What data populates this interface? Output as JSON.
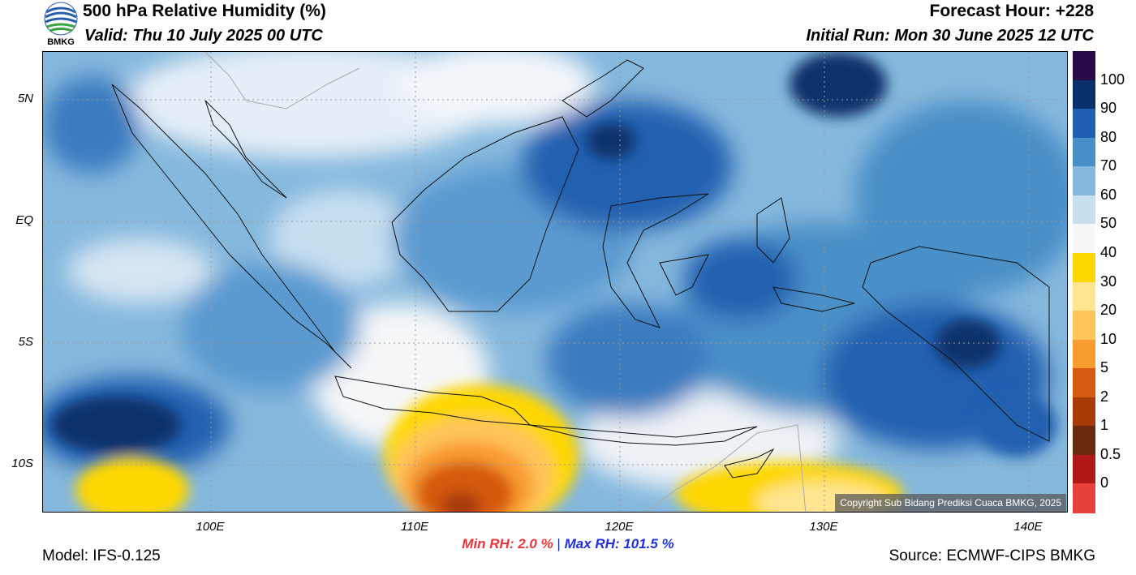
{
  "header": {
    "title": "500 hPa Relative Humidity (%)",
    "valid": "Valid: Thu 10 July 2025 00 UTC",
    "forecast_hour": "Forecast Hour: +228",
    "initial_run": "Initial Run: Mon 30 June 2025 12 UTC",
    "logo_text": "BMKG"
  },
  "map": {
    "lat_labels": [
      "5N",
      "EQ",
      "5S",
      "10S"
    ],
    "lon_labels": [
      "100E",
      "110E",
      "120E",
      "130E",
      "140E"
    ],
    "copyright": "Copyright Sub Bidang Prediksi Cuaca BMKG, 2025"
  },
  "colorbar": {
    "labels": [
      "100",
      "90",
      "80",
      "70",
      "60",
      "50",
      "40",
      "30",
      "20",
      "10",
      "5",
      "2",
      "1",
      "0.5",
      "0"
    ],
    "colors": [
      "#2b0a4a",
      "#08306b",
      "#2060b0",
      "#4a90c8",
      "#85b8dd",
      "#c8dff0",
      "#f7f7f7",
      "#ffd700",
      "#ffe590",
      "#ffc45a",
      "#f99c30",
      "#d65a10",
      "#a83a08",
      "#6a2a10",
      "#b01818",
      "#e8403a"
    ]
  },
  "footer": {
    "min_rh": "Min RH:   2.0 %",
    "separator": "|",
    "max_rh": "Max RH: 101.5 %",
    "model": "Model: IFS-0.125",
    "source": "Source: ECMWF-CIPS BMKG"
  }
}
